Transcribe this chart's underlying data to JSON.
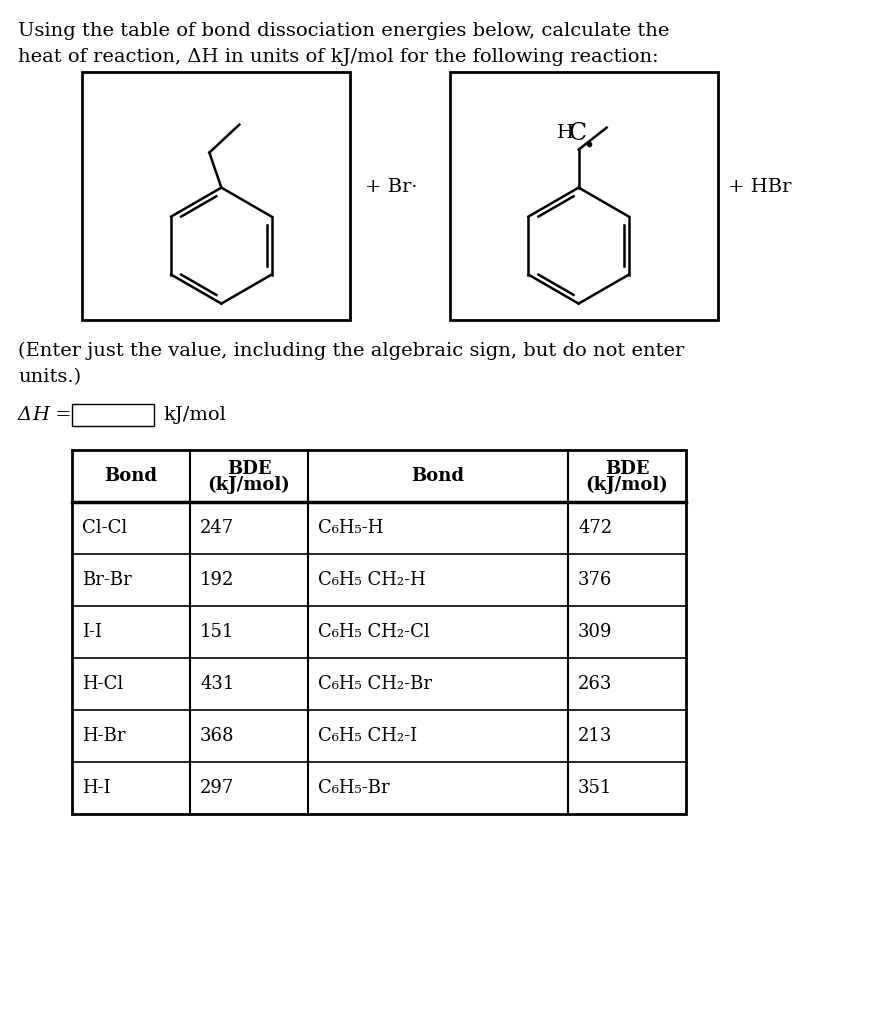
{
  "title_line1": "Using the table of bond dissociation energies below, calculate the",
  "title_line2": "heat of reaction, ΔH in units of kJ/mol for the following reaction:",
  "plus_br": "+ Br·",
  "plus_hbr": "+ HBr",
  "delta_h_label": "ΔH =",
  "delta_h_unit": "kJ/mol",
  "instruction_line1": "(Enter just the value, including the algebraic sign, but do not enter",
  "instruction_line2": "units.)",
  "col1_bonds": [
    "Cl-Cl",
    "Br-Br",
    "I-I",
    "H-Cl",
    "H-Br",
    "H-I"
  ],
  "col1_bde": [
    "247",
    "192",
    "151",
    "431",
    "368",
    "297"
  ],
  "col2_bonds": [
    "C₆H₅-H",
    "C₆H₅ CH₂-H",
    "C₆H₅ CH₂-Cl",
    "C₆H₅ CH₂-Br",
    "C₆H₅ CH₂-I",
    "C₆H₅-Br"
  ],
  "col2_bde": [
    "472",
    "376",
    "309",
    "263",
    "213",
    "351"
  ],
  "background_color": "#ffffff",
  "text_color": "#000000"
}
